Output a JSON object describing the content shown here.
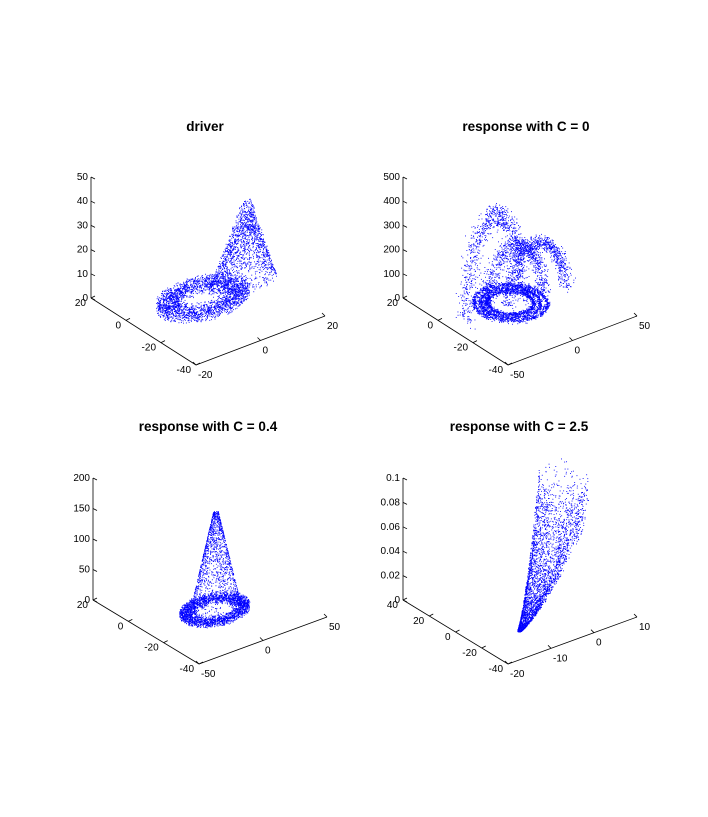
{
  "figure": {
    "background": "#ffffff",
    "point_color": "#0000ff"
  },
  "chart_data": [
    {
      "type": "scatter3d",
      "title": "driver",
      "xlabel": "",
      "ylabel": "",
      "zlabel": "",
      "x_ticks": [
        "-20",
        "0",
        "20"
      ],
      "y_ticks": [
        "-40",
        "-20",
        "0",
        "20"
      ],
      "z_ticks": [
        "0",
        "10",
        "20",
        "30",
        "40",
        "50"
      ],
      "xlim": [
        -20,
        20
      ],
      "ylim": [
        -40,
        20
      ],
      "zlim": [
        0,
        50
      ],
      "grid": false,
      "series": [
        {
          "color": "#0000ff",
          "marker": "point",
          "shape": "lorenz-type butterfly attractor",
          "params": {
            "center_x": 0,
            "center_y": -7,
            "radius_x": 13,
            "radius_y": 14,
            "hole_radius": 6,
            "floor_z": 5,
            "peak_x": 6,
            "peak_y": -21,
            "peak_z": 48
          }
        }
      ]
    },
    {
      "type": "scatter3d",
      "title": "response with C = 0",
      "xlabel": "",
      "ylabel": "",
      "zlabel": "",
      "x_ticks": [
        "-50",
        "0",
        "50"
      ],
      "y_ticks": [
        "-40",
        "-20",
        "0",
        "20"
      ],
      "z_ticks": [
        "0",
        "100",
        "200",
        "300",
        "400",
        "500"
      ],
      "xlim": [
        -50,
        50
      ],
      "ylim": [
        -40,
        20
      ],
      "zlim": [
        0,
        500
      ],
      "grid": false,
      "series": [
        {
          "color": "#0000ff",
          "marker": "point",
          "shape": "looping periodic orbits with tall arches",
          "params": {
            "peak_z": 440,
            "secondary_peak_z": 270,
            "floor_z": 20
          }
        }
      ]
    },
    {
      "type": "scatter3d",
      "title": "response with C = 0.4",
      "xlabel": "",
      "ylabel": "",
      "zlabel": "",
      "x_ticks": [
        "-50",
        "0",
        "50"
      ],
      "y_ticks": [
        "-40",
        "-20",
        "0",
        "20"
      ],
      "z_ticks": [
        "0",
        "50",
        "100",
        "150",
        "200"
      ],
      "xlim": [
        -50,
        50
      ],
      "ylim": [
        -40,
        40
      ],
      "zlim": [
        0,
        200
      ],
      "grid": false,
      "series": [
        {
          "color": "#0000ff",
          "marker": "point",
          "shape": "dense torus with diffuse cone of scattered points",
          "params": {
            "peak_z": 165,
            "floor_z": 8
          }
        }
      ]
    },
    {
      "type": "scatter3d",
      "title": "response with C = 2.5",
      "xlabel": "",
      "ylabel": "",
      "zlabel": "",
      "x_ticks": [
        "-20",
        "-10",
        "0",
        "10"
      ],
      "y_ticks": [
        "-40",
        "-20",
        "0",
        "20",
        "40"
      ],
      "z_ticks": [
        "0",
        "0.02",
        "0.04",
        "0.06",
        "0.08",
        "0.1"
      ],
      "xlim": [
        -20,
        10
      ],
      "ylim": [
        -40,
        40
      ],
      "zlim": [
        0,
        0.1
      ],
      "grid": false,
      "series": [
        {
          "color": "#0000ff",
          "marker": "point",
          "shape": "slanted elongated attractor rising to a peak",
          "params": {
            "peak_z": 0.1,
            "floor_z": 0.005
          }
        }
      ]
    }
  ]
}
